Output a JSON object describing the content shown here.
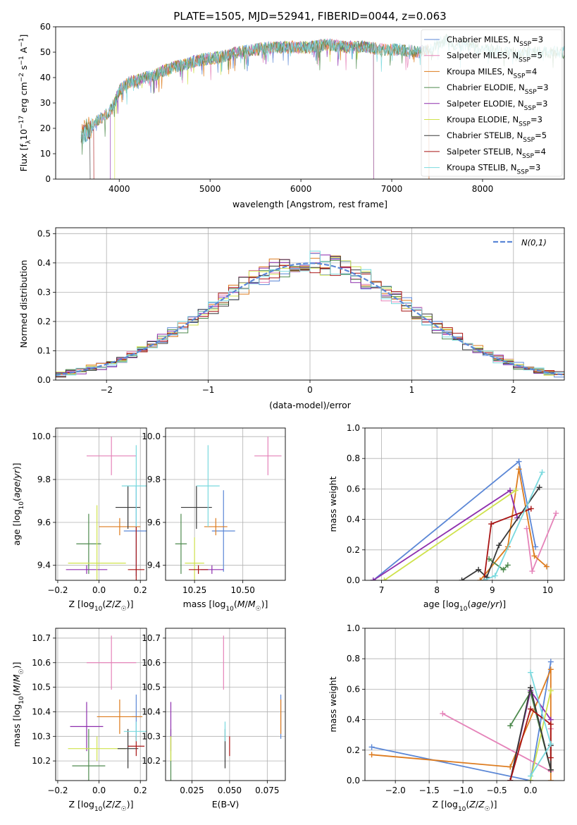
{
  "colors": {
    "Chabrier MILES": "#5b87d6",
    "Salpeter MILES": "#e583b9",
    "Kroupa MILES": "#dd7b1e",
    "Chabrier ELODIE": "#4e8a4e",
    "Salpeter ELODIE": "#8e2fae",
    "Kroupa ELODIE": "#cfe24c",
    "Chabrier STELIB": "#383838",
    "Salpeter STELIB": "#a81414",
    "Kroupa STELIB": "#79d9de"
  },
  "chart_data": [
    {
      "type": "line",
      "panel": "spectrum",
      "title": "PLATE=1505, MJD=52941, FIBERID=0044, z=0.063",
      "xlabel": "wavelength [Angstrom, rest frame]",
      "ylabel": "Flux [f_λ10^-17 erg cm^-2 s^-1 A^-1]",
      "xlim": [
        3300,
        8900
      ],
      "ylim": [
        0,
        60
      ],
      "xticks": [
        4000,
        5000,
        6000,
        7000,
        8000
      ],
      "yticks": [
        0,
        10,
        20,
        30,
        40,
        50,
        60
      ],
      "legend": "upper right",
      "legend_entries": [
        {
          "label": "Chabrier MILES, N_SSP=3",
          "model": "Chabrier MILES"
        },
        {
          "label": "Salpeter MILES, N_SSP=5",
          "model": "Salpeter MILES"
        },
        {
          "label": "Kroupa MILES, N_SSP=4",
          "model": "Kroupa MILES"
        },
        {
          "label": "Chabrier ELODIE, N_SSP=3",
          "model": "Chabrier ELODIE"
        },
        {
          "label": "Salpeter ELODIE, N_SSP=3",
          "model": "Salpeter ELODIE"
        },
        {
          "label": "Kroupa ELODIE, N_SSP=3",
          "model": "Kroupa ELODIE"
        },
        {
          "label": "Chabrier STELIB, N_SSP=5",
          "model": "Chabrier STELIB"
        },
        {
          "label": "Salpeter STELIB, N_SSP=4",
          "model": "Salpeter STELIB"
        },
        {
          "label": "Kroupa STELIB, N_SSP=3",
          "model": "Kroupa STELIB"
        }
      ],
      "continuum": {
        "x": [
          3580,
          3700,
          3800,
          3900,
          3950,
          4000,
          4100,
          4200,
          4300,
          4400,
          4500,
          4700,
          4900,
          5100,
          5300,
          5500,
          5700,
          5900,
          6100,
          6300,
          6500,
          6700,
          6900,
          7100,
          7300,
          7400,
          7500,
          7600,
          7700,
          7800,
          7900,
          8000,
          8100,
          8200,
          8300,
          8400,
          8500
        ],
        "y": [
          18,
          21,
          24,
          27,
          30,
          35,
          38,
          39,
          40,
          41,
          43,
          45,
          47,
          48,
          50,
          51,
          52,
          52,
          52,
          53,
          52,
          52,
          51,
          51,
          50,
          51,
          53,
          55,
          52,
          53,
          52,
          51,
          51,
          50,
          50,
          49,
          50
        ]
      },
      "special_lines": [
        {
          "model": "Chabrier STELIB",
          "range": [
            3580,
            3680
          ]
        },
        {
          "model": "Salpeter STELIB",
          "range": [
            3580,
            3720
          ]
        },
        {
          "model": "Kroupa ELODIE",
          "range": [
            3950,
            6800
          ]
        },
        {
          "model": "Salpeter ELODIE",
          "range": [
            3900,
            6800
          ]
        },
        {
          "model": "Chabrier MILES",
          "range": [
            3580,
            7410
          ]
        },
        {
          "model": "Salpeter MILES",
          "range": [
            3580,
            7410
          ]
        },
        {
          "model": "Kroupa MILES",
          "range": [
            3580,
            7410
          ]
        },
        {
          "model": "Chabrier ELODIE",
          "range": [
            3580,
            8900
          ]
        },
        {
          "model": "Kroupa STELIB",
          "range": [
            3580,
            8900
          ]
        }
      ]
    },
    {
      "type": "histogram",
      "panel": "residuals",
      "xlabel": "(data-model)/error",
      "ylabel": "Normed distribution",
      "xlim": [
        -2.5,
        2.5
      ],
      "ylim": [
        0,
        0.52
      ],
      "xticks": [
        -2,
        -1,
        0,
        1,
        2
      ],
      "yticks": [
        0.0,
        0.1,
        0.2,
        0.3,
        0.4,
        0.5
      ],
      "bin_width": 0.1,
      "legend": "upper right",
      "legend_label": "N(0,1)",
      "gaussian": {
        "mu": 0,
        "sigma": 1,
        "style": "dashed",
        "color": "#5b87d6"
      }
    },
    {
      "type": "errorbar",
      "panel": "age-vs-Z",
      "xlabel": "Z [log10(Z/Z☉)]",
      "ylabel": "age  [log10(age/yr)]",
      "xlim": [
        -0.21,
        0.23
      ],
      "ylim": [
        9.33,
        10.04
      ],
      "xticks": [
        -0.2,
        0.0,
        0.2
      ],
      "xticklabels": [
        "−0.2",
        "0.0",
        "0.2"
      ],
      "yticks": [
        9.4,
        9.6,
        9.8,
        10.0
      ],
      "points": [
        {
          "model": "Chabrier MILES",
          "x": 0.18,
          "xerr": 0.06,
          "y": 9.56,
          "yerr": 0.21
        },
        {
          "model": "Salpeter MILES",
          "x": 0.06,
          "xerr": 0.12,
          "y": 9.91,
          "yerr": 0.09
        },
        {
          "model": "Kroupa MILES",
          "x": 0.1,
          "xerr": 0.1,
          "y": 9.58,
          "yerr": 0.04
        },
        {
          "model": "Chabrier ELODIE",
          "x": -0.05,
          "xerr": 0.06,
          "y": 9.5,
          "yerr": 0.14
        },
        {
          "model": "Salpeter ELODIE",
          "x": -0.06,
          "xerr": 0.1,
          "y": 9.38,
          "yerr": 0.02
        },
        {
          "model": "Kroupa ELODIE",
          "x": -0.01,
          "xerr": 0.14,
          "y": 9.41,
          "yerr": 0.27
        },
        {
          "model": "Chabrier STELIB",
          "x": 0.14,
          "xerr": 0.06,
          "y": 9.67,
          "yerr": 0.1
        },
        {
          "model": "Salpeter STELIB",
          "x": 0.18,
          "xerr": 0.04,
          "y": 9.38,
          "yerr": 0.2
        },
        {
          "model": "Kroupa STELIB",
          "x": 0.18,
          "xerr": 0.07,
          "y": 9.77,
          "yerr": 0.19
        }
      ]
    },
    {
      "type": "errorbar",
      "panel": "age-vs-mass",
      "xlabel": "mass [log10(M/M☉)]",
      "ylabel": "",
      "xlim": [
        10.1,
        10.72
      ],
      "ylim": [
        9.33,
        10.04
      ],
      "xticks": [
        10.25,
        10.5
      ],
      "xticklabels": [
        "10.25",
        "10.50"
      ],
      "yticks": [
        9.4,
        9.6,
        9.8,
        10.0
      ],
      "points": [
        {
          "model": "Chabrier MILES",
          "x": 10.4,
          "xerr": 0.06,
          "y": 9.56,
          "yerr": 0.19
        },
        {
          "model": "Salpeter MILES",
          "x": 10.63,
          "xerr": 0.07,
          "y": 9.91,
          "yerr": 0.09
        },
        {
          "model": "Kroupa MILES",
          "x": 10.36,
          "xerr": 0.06,
          "y": 9.58,
          "yerr": 0.04
        },
        {
          "model": "Chabrier ELODIE",
          "x": 10.18,
          "xerr": 0.03,
          "y": 9.5,
          "yerr": 0.14
        },
        {
          "model": "Salpeter ELODIE",
          "x": 10.34,
          "xerr": 0.06,
          "y": 9.38,
          "yerr": 0.02
        },
        {
          "model": "Kroupa ELODIE",
          "x": 10.25,
          "xerr": 0.05,
          "y": 9.41,
          "yerr": 0.12
        },
        {
          "model": "Chabrier STELIB",
          "x": 10.26,
          "xerr": 0.08,
          "y": 9.67,
          "yerr": 0.1
        },
        {
          "model": "Salpeter STELIB",
          "x": 10.27,
          "xerr": 0.05,
          "y": 9.38,
          "yerr": 0.02
        },
        {
          "model": "Kroupa STELIB",
          "x": 10.32,
          "xerr": 0.06,
          "y": 9.77,
          "yerr": 0.19
        }
      ]
    },
    {
      "type": "line",
      "panel": "mass-weight-vs-age",
      "xlabel": "age  [log10(age/yr)]",
      "ylabel": "mass weight",
      "xlim": [
        6.7,
        10.3
      ],
      "ylim": [
        0,
        1.0
      ],
      "xticks": [
        7,
        8,
        9,
        10
      ],
      "yticks": [
        0.0,
        0.2,
        0.4,
        0.6,
        0.8,
        1.0
      ],
      "series": [
        {
          "model": "Chabrier MILES",
          "x": [
            6.85,
            9.48,
            9.78
          ],
          "y": [
            0.0,
            0.78,
            0.22
          ]
        },
        {
          "model": "Salpeter MILES",
          "x": [
            9.62,
            9.72,
            10.15
          ],
          "y": [
            0.34,
            0.06,
            0.44
          ]
        },
        {
          "model": "Kroupa MILES",
          "x": [
            8.78,
            9.28,
            9.48,
            9.76,
            9.98
          ],
          "y": [
            0.0,
            0.22,
            0.73,
            0.16,
            0.09
          ]
        },
        {
          "model": "Chabrier ELODIE",
          "x": [
            8.94,
            9.2,
            9.28
          ],
          "y": [
            0.14,
            0.07,
            0.1
          ]
        },
        {
          "model": "Salpeter ELODIE",
          "x": [
            6.85,
            9.32,
            9.45
          ],
          "y": [
            0.0,
            0.59,
            0.41
          ]
        },
        {
          "model": "Kroupa ELODIE",
          "x": [
            7.05,
            9.42
          ],
          "y": [
            0.0,
            0.59
          ]
        },
        {
          "model": "Chabrier STELIB",
          "x": [
            8.45,
            8.75,
            8.9,
            9.12,
            9.85
          ],
          "y": [
            0.0,
            0.07,
            0.02,
            0.23,
            0.61
          ]
        },
        {
          "model": "Salpeter STELIB",
          "x": [
            8.85,
            8.98,
            9.7
          ],
          "y": [
            0.0,
            0.37,
            0.47
          ]
        },
        {
          "model": "Kroupa STELIB",
          "x": [
            8.85,
            9.05,
            9.9
          ],
          "y": [
            0.0,
            0.03,
            0.71
          ]
        }
      ]
    },
    {
      "type": "errorbar",
      "panel": "mass-vs-Z",
      "xlabel": "Z [log10(Z/Z☉)]",
      "ylabel": "mass [log10(M/M☉)]",
      "xlim": [
        -0.21,
        0.23
      ],
      "ylim": [
        10.12,
        10.74
      ],
      "xticks": [
        -0.2,
        0.0,
        0.2
      ],
      "xticklabels": [
        "−0.2",
        "0.0",
        "0.2"
      ],
      "yticks": [
        10.2,
        10.3,
        10.4,
        10.5,
        10.6,
        10.7
      ],
      "points": [
        {
          "model": "Chabrier MILES",
          "x": 0.18,
          "xerr": 0.02,
          "y": 10.38,
          "yerr": 0.09
        },
        {
          "model": "Salpeter MILES",
          "x": 0.06,
          "xerr": 0.12,
          "y": 10.6,
          "yerr": 0.11
        },
        {
          "model": "Kroupa MILES",
          "x": 0.1,
          "xerr": 0.11,
          "y": 10.38,
          "yerr": 0.07
        },
        {
          "model": "Chabrier ELODIE",
          "x": -0.05,
          "xerr": 0.08,
          "y": 10.18,
          "yerr": 0.15
        },
        {
          "model": "Salpeter ELODIE",
          "x": -0.06,
          "xerr": 0.08,
          "y": 10.34,
          "yerr": 0.1
        },
        {
          "model": "Kroupa ELODIE",
          "x": -0.01,
          "xerr": 0.14,
          "y": 10.25,
          "yerr": 0.05
        },
        {
          "model": "Chabrier STELIB",
          "x": 0.14,
          "xerr": 0.05,
          "y": 10.25,
          "yerr": 0.08
        },
        {
          "model": "Salpeter STELIB",
          "x": 0.18,
          "xerr": 0.04,
          "y": 10.26,
          "yerr": 0.04
        },
        {
          "model": "Kroupa STELIB",
          "x": 0.18,
          "xerr": 0.06,
          "y": 10.32,
          "yerr": 0.04
        }
      ]
    },
    {
      "type": "errorbar",
      "panel": "mass-vs-ebv",
      "xlabel": "E(B-V)",
      "ylabel": "",
      "xlim": [
        0.0075,
        0.087
      ],
      "ylim": [
        10.12,
        10.74
      ],
      "xticks": [
        0.025,
        0.05,
        0.075
      ],
      "xticklabels": [
        "0.025",
        "0.050",
        "0.075"
      ],
      "yticks": [
        10.2,
        10.3,
        10.4,
        10.5,
        10.6,
        10.7
      ],
      "points": [
        {
          "model": "Chabrier MILES",
          "x": 0.084,
          "xerr": 0,
          "y": 10.38,
          "yerr": 0.09
        },
        {
          "model": "Salpeter MILES",
          "x": 0.046,
          "xerr": 0,
          "y": 10.6,
          "yerr": 0.11
        },
        {
          "model": "Kroupa MILES",
          "x": 0.084,
          "xerr": 0,
          "y": 10.38,
          "yerr": 0.07
        },
        {
          "model": "Chabrier ELODIE",
          "x": 0.011,
          "xerr": 0,
          "y": 10.18,
          "yerr": 0.15
        },
        {
          "model": "Salpeter ELODIE",
          "x": 0.011,
          "xerr": 0,
          "y": 10.34,
          "yerr": 0.1
        },
        {
          "model": "Kroupa ELODIE",
          "x": 0.011,
          "xerr": 0,
          "y": 10.25,
          "yerr": 0.05
        },
        {
          "model": "Chabrier STELIB",
          "x": 0.047,
          "xerr": 0,
          "y": 10.25,
          "yerr": 0.08
        },
        {
          "model": "Salpeter STELIB",
          "x": 0.05,
          "xerr": 0,
          "y": 10.26,
          "yerr": 0.04
        },
        {
          "model": "Kroupa STELIB",
          "x": 0.047,
          "xerr": 0,
          "y": 10.32,
          "yerr": 0.04
        }
      ]
    },
    {
      "type": "line",
      "panel": "mass-weight-vs-Z",
      "xlabel": "Z [log10(Z/Z☉)]",
      "ylabel": "mass weight",
      "xlim": [
        -2.45,
        0.5
      ],
      "ylim": [
        0,
        1.0
      ],
      "xticks": [
        -2.0,
        -1.5,
        -1.0,
        -0.5,
        0.0
      ],
      "xticklabels": [
        "−2.0",
        "−1.5",
        "−1.0",
        "−0.5",
        "0.0"
      ],
      "yticks": [
        0.0,
        0.2,
        0.4,
        0.6,
        0.8,
        1.0
      ],
      "series": [
        {
          "model": "Chabrier MILES",
          "x": [
            -2.35,
            0.0,
            0.3
          ],
          "y": [
            0.22,
            0.0,
            0.78
          ]
        },
        {
          "model": "Salpeter MILES",
          "x": [
            -1.3,
            0.3,
            0.3
          ],
          "y": [
            0.44,
            0.06,
            0.34
          ]
        },
        {
          "model": "Kroupa MILES",
          "x": [
            -2.35,
            -0.3,
            0.3,
            0.3
          ],
          "y": [
            0.17,
            0.09,
            0.73,
            0.0
          ]
        },
        {
          "model": "Chabrier ELODIE",
          "x": [
            -0.3,
            0.0,
            0.3
          ],
          "y": [
            0.36,
            0.58,
            0.07
          ]
        },
        {
          "model": "Salpeter ELODIE",
          "x": [
            -0.3,
            0.0,
            0.3
          ],
          "y": [
            0.0,
            0.59,
            0.4
          ]
        },
        {
          "model": "Kroupa ELODIE",
          "x": [
            0.0,
            0.3
          ],
          "y": [
            0.0,
            0.59
          ]
        },
        {
          "model": "Chabrier STELIB",
          "x": [
            -0.3,
            0.0,
            0.3,
            0.3
          ],
          "y": [
            0.0,
            0.61,
            0.07,
            0.23
          ]
        },
        {
          "model": "Salpeter STELIB",
          "x": [
            -0.3,
            0.0,
            0.3,
            0.3
          ],
          "y": [
            0.0,
            0.47,
            0.37,
            0.15
          ]
        },
        {
          "model": "Kroupa STELIB",
          "x": [
            0.0,
            0.3,
            0.0
          ],
          "y": [
            0.71,
            0.24,
            0.03
          ]
        }
      ]
    }
  ]
}
